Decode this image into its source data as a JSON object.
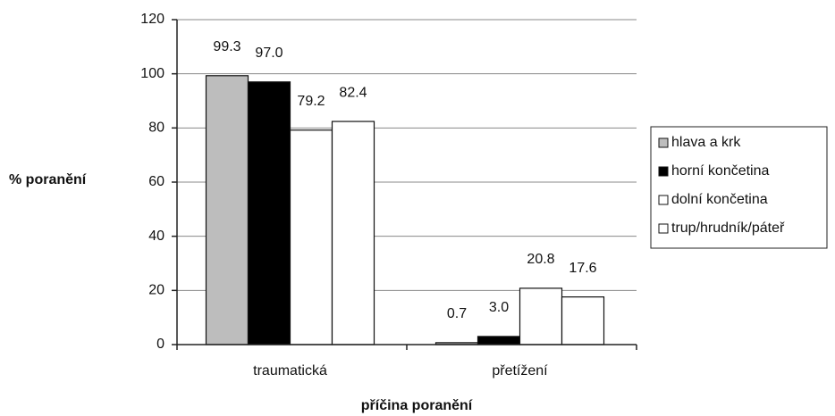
{
  "chart_data": {
    "type": "bar",
    "y_label": "% poranění",
    "x_label": "příčina poranění",
    "categories": [
      "traumatická",
      "přetížení"
    ],
    "series": [
      {
        "name": "hlava a krk",
        "color": "#bdbdbd",
        "values": [
          99.3,
          0.7
        ],
        "value_labels": [
          "99.3",
          "0.7"
        ]
      },
      {
        "name": "horní končetina",
        "color": "#000000",
        "values": [
          97.0,
          3.0
        ],
        "value_labels": [
          "97.0",
          "3.0"
        ]
      },
      {
        "name": "dolní končetina",
        "color": "#ffffff",
        "values": [
          79.2,
          20.8
        ],
        "value_labels": [
          "79.2",
          "20.8"
        ]
      },
      {
        "name": "trup/hrudník/páteř",
        "color": "#ffffff",
        "values": [
          82.4,
          17.6
        ],
        "value_labels": [
          "82.4",
          "17.6"
        ]
      }
    ],
    "ylim": [
      0,
      120
    ],
    "yticks": [
      0,
      20,
      40,
      60,
      80,
      100,
      120
    ],
    "grid": true,
    "legend": "right"
  }
}
